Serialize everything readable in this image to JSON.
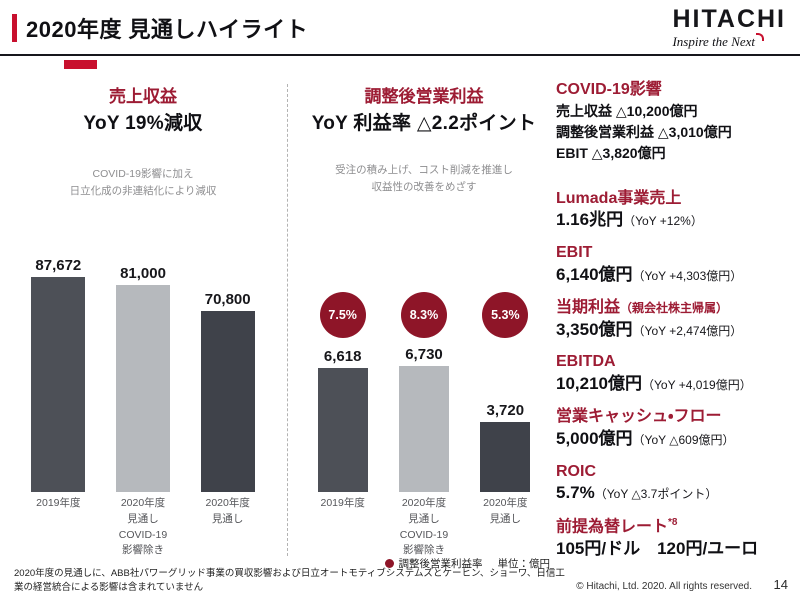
{
  "colors": {
    "accent_red": "#c8102e",
    "heading_red": "#9d1c34",
    "circle_red": "#8e1528",
    "bar_dark": "#4d5057",
    "bar_light": "#b6b9bd",
    "bar_forecast": "#3f424a"
  },
  "header": {
    "title": "2020年度 見通しハイライト",
    "logo": "HITACHI",
    "tagline": "Inspire the Next"
  },
  "sales": {
    "heading": "売上収益",
    "yoy": "YoY 19%減収",
    "note": "COVID-19影響に加え\n日立化成の非連結化により減収"
  },
  "profit": {
    "heading": "調整後営業利益",
    "yoy": "YoY 利益率 △2.2ポイント",
    "note": "受注の積み上げ、コスト削減を推進し\n収益性の改善をめざす",
    "legend": "調整後営業利益率",
    "unit": "単位：億円"
  },
  "chart_data": [
    {
      "type": "bar",
      "title": "売上収益",
      "categories": [
        "2019年度",
        "2020年度\n見通し\nCOVID-19\n影響除き",
        "2020年度\n見通し"
      ],
      "values": [
        87672,
        81000,
        70800
      ],
      "value_labels": [
        "87,672",
        "81,000",
        "70,800"
      ],
      "ylim": [
        0,
        92000
      ],
      "unit": "億円",
      "grid": false,
      "legend_position": "none"
    },
    {
      "type": "bar",
      "title": "調整後営業利益",
      "categories": [
        "2019年度",
        "2020年度\n見通し\nCOVID-19\n影響除き",
        "2020年度\n見通し"
      ],
      "values": [
        6618,
        6730,
        3720
      ],
      "value_labels": [
        "6,618",
        "6,730",
        "3,720"
      ],
      "margin_ratio_labels": [
        "7.5%",
        "8.3%",
        "5.3%"
      ],
      "legend": "調整後営業利益率",
      "ylim": [
        0,
        8000
      ],
      "unit": "億円",
      "grid": false,
      "legend_position": "bottom-right"
    }
  ],
  "kpis": [
    {
      "heading": "COVID-19影響",
      "lines": [
        "売上収益 △10,200億円",
        "調整後営業利益 △3,010億円",
        "EBIT △3,820億円"
      ]
    },
    {
      "heading": "Lumada事業売上",
      "value": "1.16兆円",
      "note": "（YoY +12%）"
    },
    {
      "heading": "EBIT",
      "value": "6,140億円",
      "note": "（YoY +4,303億円）"
    },
    {
      "heading": "当期利益",
      "heading_note": "（親会社株主帰属）",
      "value": "3,350億円",
      "note": "（YoY +2,474億円）"
    },
    {
      "heading": "EBITDA",
      "value": "10,210億円",
      "note": "（YoY +4,019億円）"
    },
    {
      "heading": "営業キャッシュ・フロー",
      "value": "5,000億円",
      "note": "（YoY △609億円）"
    },
    {
      "heading": "ROIC",
      "value": "5.7%",
      "note": "（YoY △3.7ポイント）"
    },
    {
      "heading": "前提為替レート",
      "heading_sup": "*8",
      "value": "105円/ドル　120円/ユーロ"
    }
  ],
  "footer": {
    "footnote": "2020年度の見通しに、ABB社パワーグリッド事業の買収影響および日立オートモティブシステムズとケーヒン、ショーワ、日信工業の経営統合による影響は含まれていません",
    "copyright": "© Hitachi, Ltd. 2020. All rights reserved.",
    "page": "14"
  }
}
